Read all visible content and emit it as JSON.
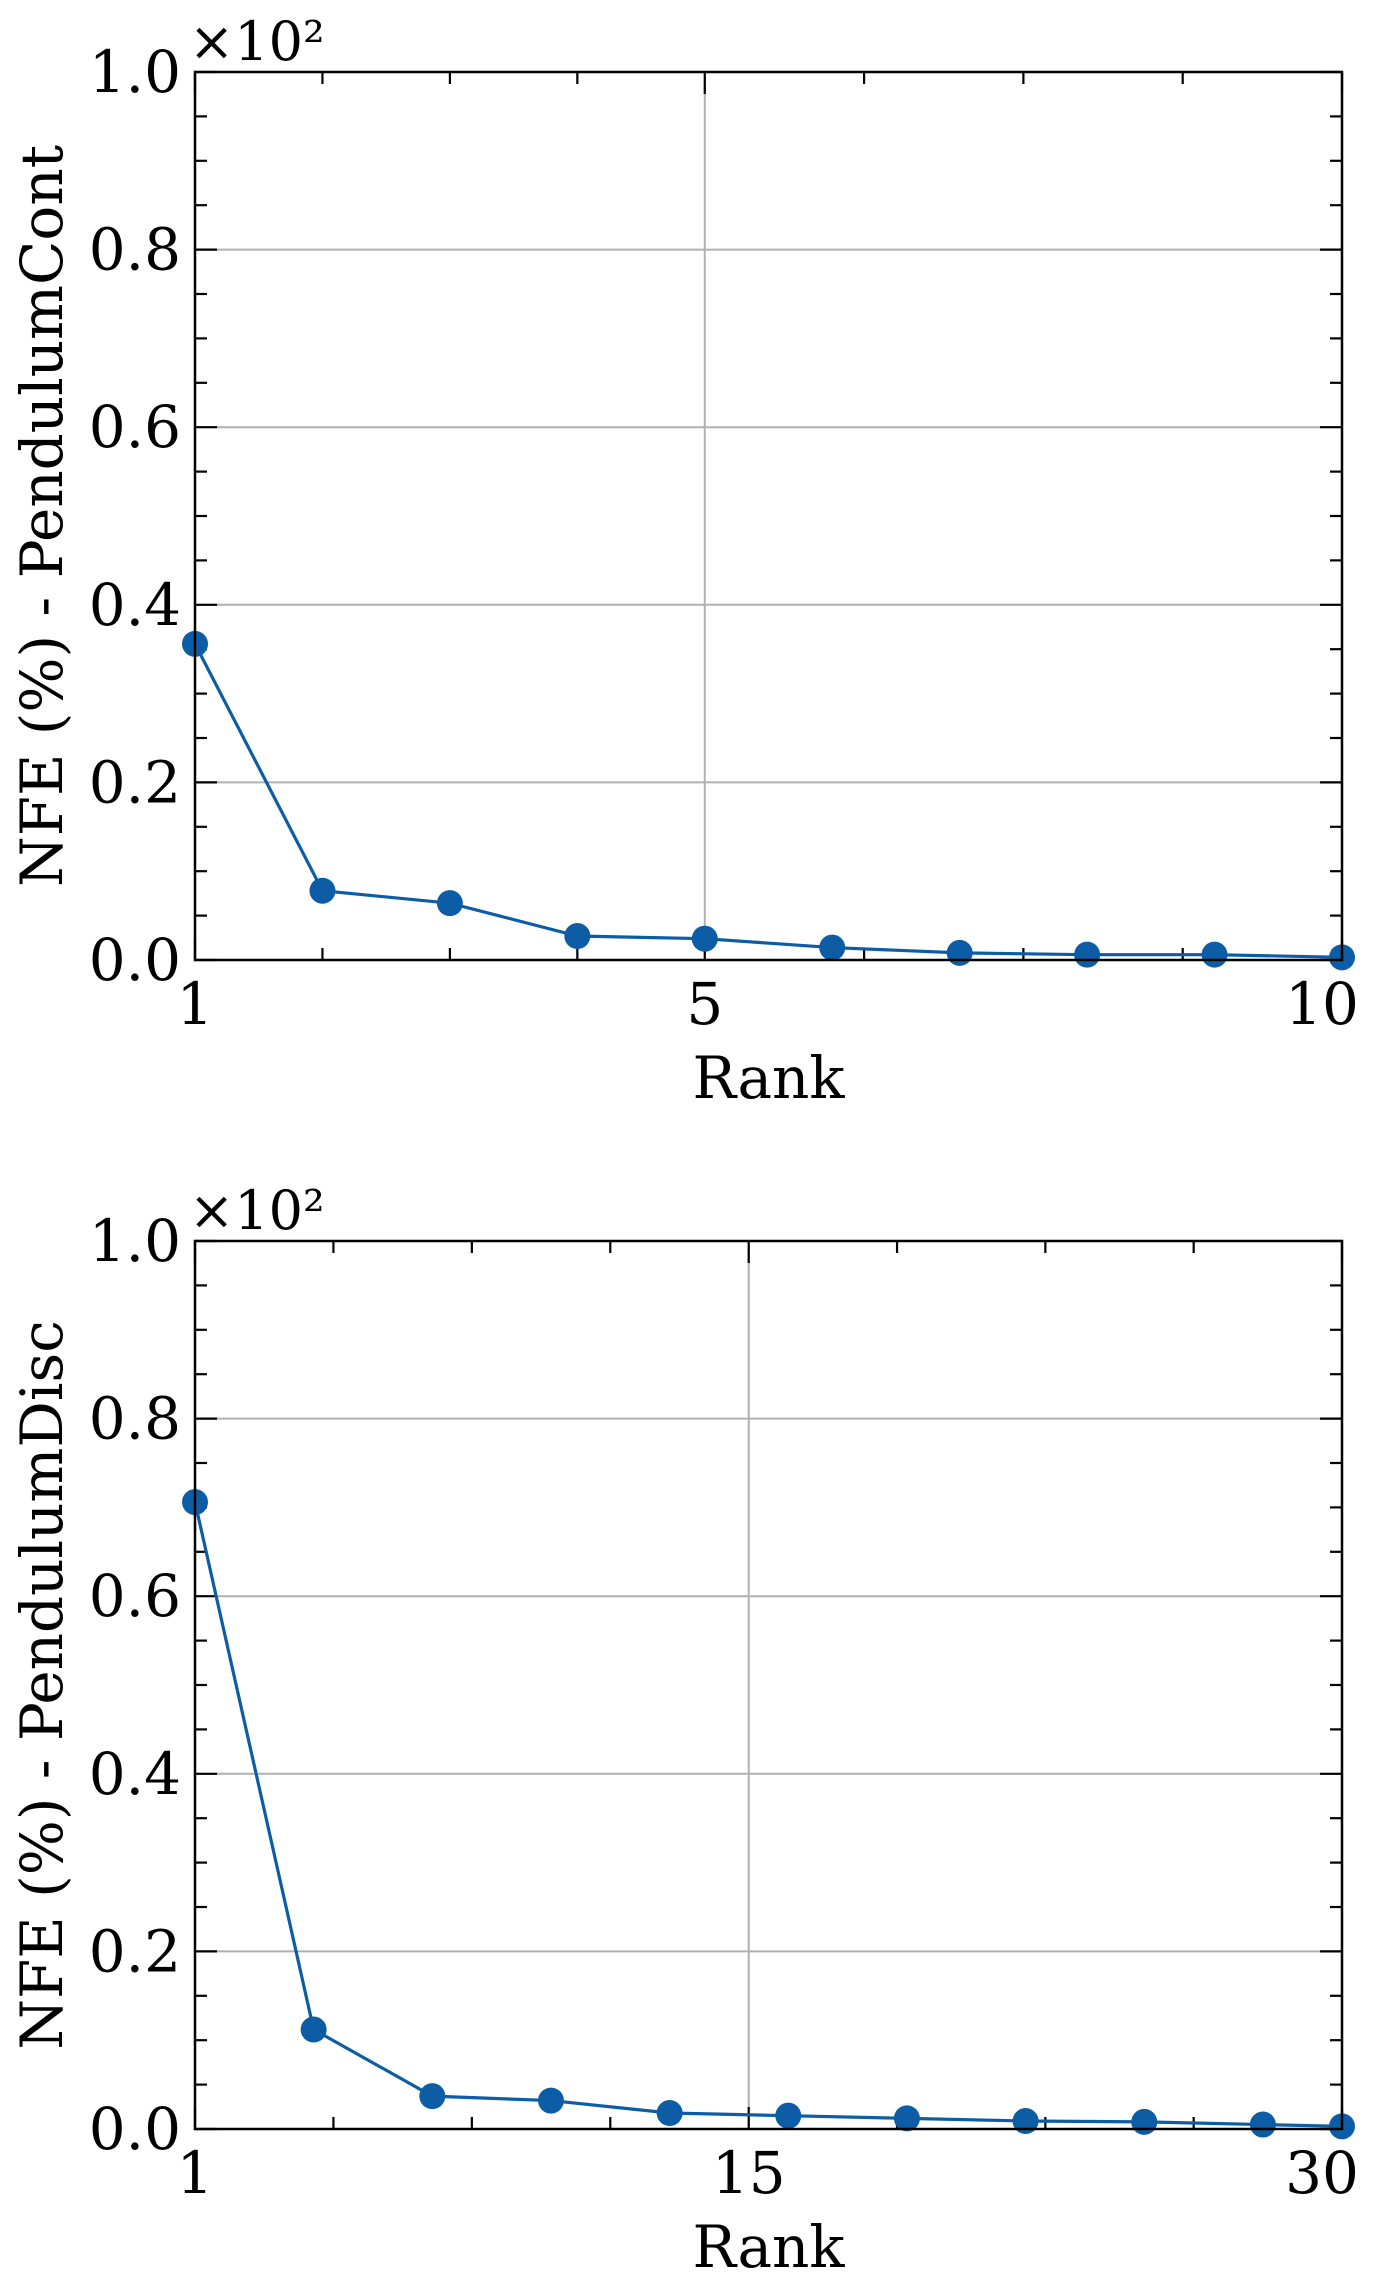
{
  "chart_data": [
    {
      "type": "line",
      "xlabel": "Rank",
      "ylabel": "NFE (%) - PendulumCont",
      "y_multiplier": "×10²",
      "xlim": [
        1,
        10
      ],
      "ylim": [
        0,
        1.0
      ],
      "xticks": [
        1,
        5,
        10
      ],
      "xtick_labels": [
        "1",
        "5",
        "10"
      ],
      "yticks": [
        0.0,
        0.2,
        0.4,
        0.6,
        0.8,
        1.0
      ],
      "ytick_labels": [
        "0.0",
        "0.2",
        "0.4",
        "0.6",
        "0.8",
        "1.0"
      ],
      "grid": true,
      "series": [
        {
          "color": "#0c5da5",
          "x": [
            1,
            2,
            3,
            4,
            5,
            6,
            7,
            8,
            9,
            10
          ],
          "y": [
            0.356,
            0.078,
            0.064,
            0.027,
            0.024,
            0.014,
            0.008,
            0.006,
            0.006,
            0.003
          ]
        }
      ]
    },
    {
      "type": "line",
      "xlabel": "Rank",
      "ylabel": "NFE (%) - PendulumDisc",
      "y_multiplier": "×10²",
      "xlim": [
        1,
        30
      ],
      "ylim": [
        0,
        1.0
      ],
      "xticks": [
        1,
        15,
        30
      ],
      "xtick_labels": [
        "1",
        "15",
        "30"
      ],
      "yticks": [
        0.0,
        0.2,
        0.4,
        0.6,
        0.8,
        1.0
      ],
      "ytick_labels": [
        "0.0",
        "0.2",
        "0.4",
        "0.6",
        "0.8",
        "1.0"
      ],
      "grid": true,
      "series": [
        {
          "color": "#0c5da5",
          "x": [
            1,
            4,
            7,
            10,
            13,
            16,
            19,
            22,
            25,
            28,
            30
          ],
          "y": [
            0.706,
            0.112,
            0.037,
            0.032,
            0.018,
            0.015,
            0.012,
            0.009,
            0.008,
            0.005,
            0.003
          ]
        }
      ]
    }
  ]
}
